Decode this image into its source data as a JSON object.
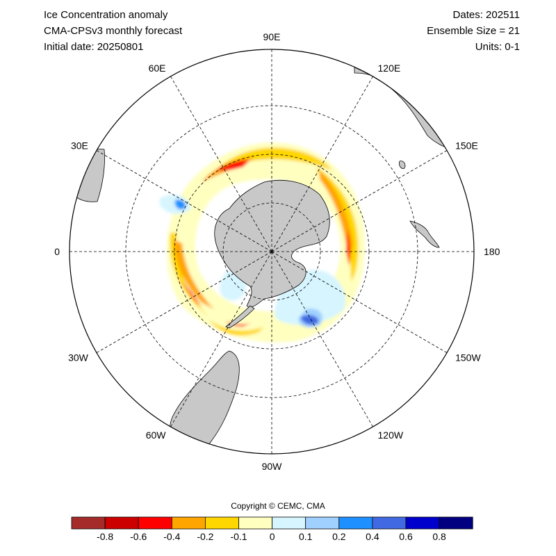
{
  "header": {
    "title": "Ice Concentration anomaly",
    "model": "CMA-CPSv3 monthly forecast",
    "initial_date": "Initial date: 20250801",
    "dates": "Dates: 202511",
    "ensemble": "Ensemble Size = 21",
    "units": "Units: 0-1"
  },
  "map": {
    "projection": "south polar stereographic",
    "longitude_labels": [
      {
        "lon": 90,
        "label": "90E"
      },
      {
        "lon": 120,
        "label": "120E"
      },
      {
        "lon": 150,
        "label": "150E"
      },
      {
        "lon": 180,
        "label": "180"
      },
      {
        "lon": -150,
        "label": "150W"
      },
      {
        "lon": -120,
        "label": "120W"
      },
      {
        "lon": -90,
        "label": "90W"
      },
      {
        "lon": -60,
        "label": "60W"
      },
      {
        "lon": -30,
        "label": "30W"
      },
      {
        "lon": 0,
        "label": "0"
      },
      {
        "lon": 30,
        "label": "30E"
      },
      {
        "lon": 60,
        "label": "60E"
      }
    ],
    "colors": {
      "land": "#c8c8c8",
      "grid": "#000000",
      "ocean": "#ffffff"
    }
  },
  "colorbar": {
    "colors": [
      "#a52a2a",
      "#cd0000",
      "#ff0000",
      "#ffa500",
      "#ffd700",
      "#ffffc0",
      "#d6f5ff",
      "#a0d0ff",
      "#1e90ff",
      "#4169e1",
      "#0000cd",
      "#000080"
    ],
    "tick_labels": [
      "-0.8",
      "-0.6",
      "-0.4",
      "-0.2",
      "-0.1",
      "0",
      "0.1",
      "0.2",
      "0.4",
      "0.6",
      "0.8"
    ]
  },
  "copyright": "Copyright © CEMC, CMA"
}
